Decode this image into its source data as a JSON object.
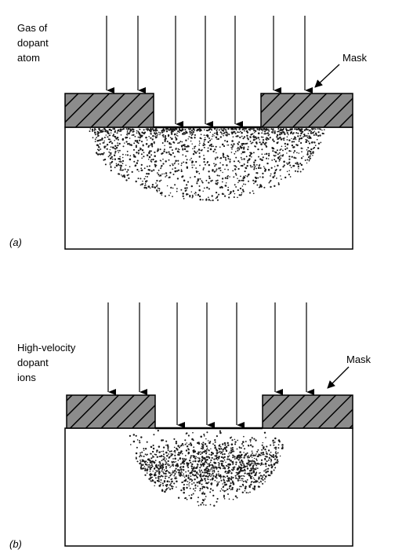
{
  "panel_a": {
    "tag": "(a)",
    "source_label": [
      "Gas of",
      "dopant",
      "atom"
    ],
    "mask_label": "Mask"
  },
  "panel_b": {
    "tag": "(b)",
    "source_label": [
      "High-velocity",
      "dopant",
      "ions"
    ],
    "mask_label": "Mask"
  },
  "colors": {
    "stroke": "#000000",
    "background": "#ffffff",
    "mask_fill": "#8c8c8c",
    "dots": "#1a1a1a"
  }
}
